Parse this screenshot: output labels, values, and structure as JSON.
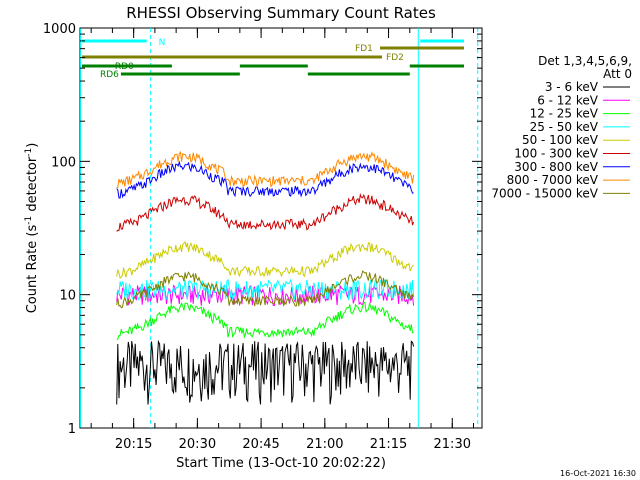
{
  "chart_data": {
    "type": "line",
    "title": "RHESSI Observing Summary Count Rates",
    "xlabel": "Start Time (13-Oct-10 20:02:22)",
    "ylabel": "Count Rate (s⁻¹ detector⁻¹)",
    "ylabel_main": "Count Rate (s",
    "ylabel_sup1": "-1",
    "ylabel_mid": " detector",
    "ylabel_sup2": "-1",
    "ylabel_end": ")",
    "yscale": "log",
    "ylim": [
      1,
      1000
    ],
    "xlim_minutes": [
      20.03,
      21.62
    ],
    "xlim_label": [
      "20:02",
      "21:37"
    ],
    "x_ticks": [
      "20:15",
      "20:30",
      "20:45",
      "21:00",
      "21:15",
      "21:30"
    ],
    "y_ticks": [
      "1",
      "10",
      "100",
      "1000"
    ],
    "detectors": "Det 1,3,4,5,6,9,",
    "attenuator": "Att 0",
    "footer_date": "16-Oct-2021 16:30",
    "series": [
      {
        "name": "3 - 6 keV",
        "color": "#000000",
        "profile": "low",
        "base": 2.5
      },
      {
        "name": "6 - 12 keV",
        "color": "#ff00ff",
        "profile": "flat",
        "base": 10
      },
      {
        "name": "12 - 25 keV",
        "color": "#00ff00",
        "profile": "orbit",
        "base": 7
      },
      {
        "name": "25 - 50 keV",
        "color": "#00ffff",
        "profile": "flat",
        "base": 11
      },
      {
        "name": "50 - 100 keV",
        "color": "#cccc00",
        "profile": "orbit",
        "base": 20
      },
      {
        "name": "100 - 300 keV",
        "color": "#cc0000",
        "profile": "orbit",
        "base": 45
      },
      {
        "name": "300 - 800 keV",
        "color": "#0000ff",
        "profile": "orbit",
        "base": 80
      },
      {
        "name": "800 - 7000 keV",
        "color": "#ff8800",
        "profile": "orbit",
        "base": 95
      },
      {
        "name": "7000 - 15000 keV",
        "color": "#808000",
        "profile": "orbit",
        "base": 12
      }
    ],
    "gaps_minutes": [
      [
        20.03,
        20.22
      ],
      [
        21.37,
        21.62
      ]
    ],
    "flags": {
      "N": {
        "label": "N",
        "color": "#00ffff",
        "segments": [
          [
            20.03,
            20.15
          ],
          [
            21.38,
            21.62
          ]
        ]
      },
      "FD1": {
        "label": "FD1",
        "color": "#808000",
        "segments": [
          [
            21.3,
            21.62
          ]
        ]
      },
      "FD2": {
        "label": "FD2",
        "color": "#808000",
        "segments": [
          [
            20.03,
            21.3
          ]
        ]
      },
      "RD0": {
        "label": "RD0",
        "color": "#008000",
        "segments": [
          [
            20.03,
            20.75
          ],
          [
            21.18,
            21.62
          ]
        ]
      },
      "RD6": {
        "label": "RD6",
        "color": "#008000",
        "segments": [
          [
            20.22,
            20.38
          ],
          [
            20.78,
            21.05
          ]
        ]
      }
    }
  }
}
